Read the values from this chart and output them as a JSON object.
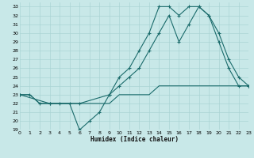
{
  "title": "",
  "xlabel": "Humidex (Indice chaleur)",
  "bg_color": "#c8e8e8",
  "grid_color": "#aad4d4",
  "line_color": "#1a6b6b",
  "xmin": 0,
  "xmax": 23,
  "ymin": 19,
  "ymax": 33.5,
  "line1_x": [
    0,
    1,
    2,
    3,
    4,
    5,
    6,
    7,
    8,
    9,
    10,
    11,
    12,
    13,
    14,
    15,
    16,
    17,
    18,
    19,
    20,
    21,
    22,
    23
  ],
  "line1_y": [
    23,
    23,
    22,
    22,
    22,
    22,
    19,
    20,
    21,
    23,
    25,
    26,
    28,
    30,
    33,
    33,
    32,
    33,
    33,
    32,
    29,
    26,
    24,
    24
  ],
  "line2_x": [
    0,
    1,
    2,
    3,
    4,
    5,
    6,
    7,
    8,
    9,
    10,
    11,
    12,
    13,
    14,
    15,
    16,
    17,
    18,
    19,
    20,
    21,
    22,
    23
  ],
  "line2_y": [
    23,
    23,
    22,
    22,
    22,
    22,
    22,
    22,
    22,
    22,
    23,
    23,
    23,
    23,
    24,
    24,
    24,
    24,
    24,
    24,
    24,
    24,
    24,
    24
  ],
  "line3_x": [
    0,
    3,
    6,
    9,
    10,
    11,
    12,
    13,
    14,
    15,
    16,
    17,
    18,
    19,
    20,
    21,
    22,
    23
  ],
  "line3_y": [
    23,
    22,
    22,
    23,
    24,
    25,
    26,
    28,
    30,
    32,
    29,
    31,
    33,
    32,
    30,
    27,
    25,
    24
  ],
  "xticks": [
    0,
    1,
    2,
    3,
    4,
    5,
    6,
    7,
    8,
    9,
    10,
    11,
    12,
    13,
    14,
    15,
    16,
    17,
    18,
    19,
    20,
    21,
    22,
    23
  ],
  "yticks": [
    19,
    20,
    21,
    22,
    23,
    24,
    25,
    26,
    27,
    28,
    29,
    30,
    31,
    32,
    33
  ]
}
